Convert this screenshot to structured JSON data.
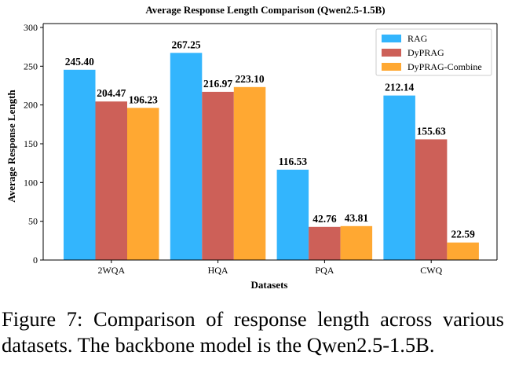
{
  "caption": "Figure 7: Comparison of response length across various datasets. The backbone model is the Qwen2.5-1.5B.",
  "chart_data": {
    "type": "bar",
    "title": "Average Response Length Comparison (Qwen2.5-1.5B)",
    "xlabel": "Datasets",
    "ylabel": "Average Response Length",
    "categories": [
      "2WQA",
      "HQA",
      "PQA",
      "CWQ"
    ],
    "series": [
      {
        "name": "RAG",
        "color": "#33b5fd",
        "values": [
          245.4,
          267.25,
          116.53,
          212.14
        ],
        "labels": [
          "245.40",
          "267.25",
          "116.53",
          "212.14"
        ]
      },
      {
        "name": "DyPRAG",
        "color": "#cd6058",
        "values": [
          204.47,
          216.97,
          42.76,
          155.63
        ],
        "labels": [
          "204.47",
          "216.97",
          "42.76",
          "155.63"
        ]
      },
      {
        "name": "DyPRAG-Combine",
        "color": "#ffa832",
        "values": [
          196.23,
          223.1,
          43.81,
          22.59
        ],
        "labels": [
          "196.23",
          "223.10",
          "43.81",
          "22.59"
        ]
      }
    ],
    "ylim": [
      0,
      305
    ],
    "yticks": [
      "0",
      "50",
      "100",
      "150",
      "200",
      "250",
      "300"
    ],
    "grid": false,
    "legend_position": "top-right"
  }
}
